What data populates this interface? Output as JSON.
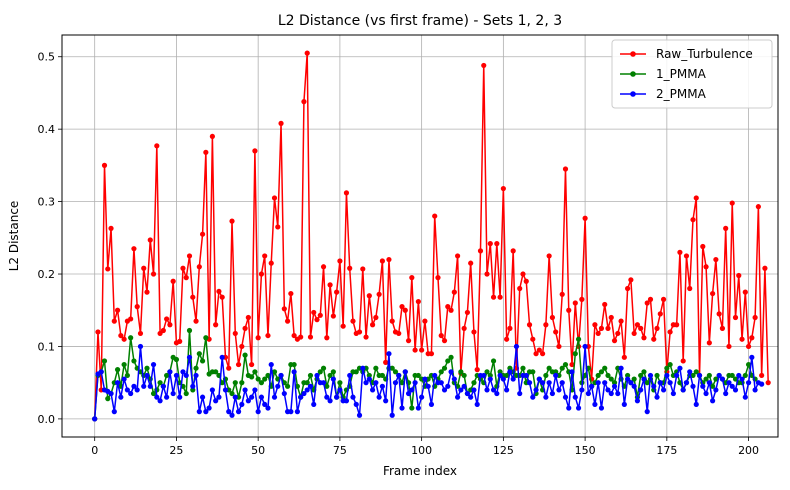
{
  "chart_data": {
    "type": "line",
    "title": "L2 Distance (vs first frame) - Sets 1, 2, 3",
    "xlabel": "Frame index",
    "ylabel": "L2 Distance",
    "xlim": [
      -10,
      209
    ],
    "ylim": [
      -0.025,
      0.53
    ],
    "xticks": [
      0,
      25,
      50,
      75,
      100,
      125,
      150,
      175,
      200
    ],
    "yticks": [
      0.0,
      0.1,
      0.2,
      0.3,
      0.4,
      0.5
    ],
    "grid": true,
    "legend_position": "top-right",
    "series": [
      {
        "name": "Raw_Turbulence",
        "color": "#ff0000",
        "values": [
          0.0,
          0.12,
          0.04,
          0.35,
          0.207,
          0.263,
          0.135,
          0.15,
          0.115,
          0.11,
          0.135,
          0.138,
          0.235,
          0.155,
          0.118,
          0.208,
          0.175,
          0.247,
          0.2,
          0.377,
          0.118,
          0.122,
          0.138,
          0.13,
          0.19,
          0.105,
          0.107,
          0.208,
          0.195,
          0.225,
          0.168,
          0.135,
          0.21,
          0.255,
          0.368,
          0.11,
          0.39,
          0.13,
          0.176,
          0.168,
          0.085,
          0.07,
          0.273,
          0.118,
          0.075,
          0.1,
          0.125,
          0.14,
          0.075,
          0.37,
          0.112,
          0.2,
          0.225,
          0.115,
          0.215,
          0.305,
          0.265,
          0.408,
          0.152,
          0.135,
          0.173,
          0.115,
          0.11,
          0.113,
          0.438,
          0.505,
          0.113,
          0.147,
          0.137,
          0.143,
          0.21,
          0.112,
          0.185,
          0.142,
          0.175,
          0.218,
          0.128,
          0.312,
          0.208,
          0.135,
          0.118,
          0.12,
          0.207,
          0.113,
          0.17,
          0.13,
          0.14,
          0.172,
          0.218,
          0.078,
          0.22,
          0.135,
          0.12,
          0.118,
          0.155,
          0.15,
          0.108,
          0.195,
          0.095,
          0.162,
          0.095,
          0.135,
          0.09,
          0.09,
          0.28,
          0.195,
          0.115,
          0.108,
          0.155,
          0.15,
          0.175,
          0.225,
          0.063,
          0.125,
          0.147,
          0.215,
          0.12,
          0.068,
          0.232,
          0.488,
          0.2,
          0.242,
          0.168,
          0.242,
          0.168,
          0.318,
          0.11,
          0.125,
          0.232,
          0.07,
          0.18,
          0.2,
          0.19,
          0.13,
          0.11,
          0.09,
          0.095,
          0.09,
          0.13,
          0.225,
          0.14,
          0.12,
          0.1,
          0.172,
          0.345,
          0.15,
          0.075,
          0.16,
          0.1,
          0.165,
          0.277,
          0.1,
          0.055,
          0.13,
          0.118,
          0.125,
          0.158,
          0.125,
          0.14,
          0.108,
          0.118,
          0.135,
          0.085,
          0.18,
          0.192,
          0.118,
          0.13,
          0.125,
          0.112,
          0.16,
          0.165,
          0.11,
          0.125,
          0.145,
          0.165,
          0.065,
          0.12,
          0.13,
          0.13,
          0.23,
          0.08,
          0.225,
          0.18,
          0.275,
          0.305,
          0.06,
          0.238,
          0.21,
          0.105,
          0.173,
          0.22,
          0.145,
          0.125,
          0.263,
          0.1,
          0.298,
          0.14,
          0.198,
          0.11,
          0.175,
          0.1,
          0.112,
          0.14,
          0.293,
          0.06,
          0.208,
          0.05
        ]
      },
      {
        "name": "1_PMMA",
        "color": "#008000",
        "values": [
          0.0,
          0.06,
          0.065,
          0.08,
          0.028,
          0.035,
          0.05,
          0.068,
          0.045,
          0.075,
          0.06,
          0.112,
          0.08,
          0.07,
          0.065,
          0.06,
          0.07,
          0.055,
          0.035,
          0.04,
          0.05,
          0.045,
          0.06,
          0.065,
          0.085,
          0.082,
          0.05,
          0.045,
          0.035,
          0.122,
          0.04,
          0.07,
          0.09,
          0.08,
          0.112,
          0.062,
          0.065,
          0.065,
          0.06,
          0.05,
          0.055,
          0.04,
          0.035,
          0.05,
          0.03,
          0.05,
          0.088,
          0.06,
          0.058,
          0.065,
          0.055,
          0.05,
          0.055,
          0.06,
          0.045,
          0.065,
          0.055,
          0.06,
          0.05,
          0.045,
          0.075,
          0.075,
          0.045,
          0.03,
          0.05,
          0.05,
          0.06,
          0.04,
          0.055,
          0.065,
          0.07,
          0.045,
          0.06,
          0.065,
          0.03,
          0.05,
          0.03,
          0.04,
          0.045,
          0.065,
          0.065,
          0.07,
          0.065,
          0.07,
          0.06,
          0.05,
          0.07,
          0.06,
          0.06,
          0.055,
          0.07,
          0.07,
          0.065,
          0.06,
          0.05,
          0.065,
          0.05,
          0.015,
          0.06,
          0.06,
          0.055,
          0.045,
          0.055,
          0.06,
          0.045,
          0.055,
          0.065,
          0.07,
          0.08,
          0.085,
          0.05,
          0.045,
          0.065,
          0.06,
          0.035,
          0.04,
          0.05,
          0.06,
          0.055,
          0.05,
          0.065,
          0.06,
          0.08,
          0.045,
          0.065,
          0.06,
          0.06,
          0.07,
          0.065,
          0.06,
          0.06,
          0.07,
          0.05,
          0.065,
          0.065,
          0.035,
          0.055,
          0.04,
          0.06,
          0.07,
          0.065,
          0.065,
          0.06,
          0.07,
          0.075,
          0.065,
          0.04,
          0.09,
          0.11,
          0.05,
          0.06,
          0.07,
          0.045,
          0.05,
          0.06,
          0.065,
          0.07,
          0.06,
          0.055,
          0.05,
          0.07,
          0.055,
          0.045,
          0.06,
          0.05,
          0.055,
          0.03,
          0.06,
          0.065,
          0.05,
          0.055,
          0.04,
          0.06,
          0.05,
          0.05,
          0.07,
          0.075,
          0.06,
          0.065,
          0.05,
          0.04,
          0.05,
          0.06,
          0.06,
          0.065,
          0.06,
          0.05,
          0.055,
          0.06,
          0.045,
          0.055,
          0.06,
          0.055,
          0.05,
          0.06,
          0.06,
          0.055,
          0.05,
          0.05,
          0.06,
          0.075,
          0.06,
          0.055
        ]
      },
      {
        "name": "2_PMMA",
        "color": "#0000ff",
        "values": [
          0.0,
          0.062,
          0.065,
          0.04,
          0.038,
          0.035,
          0.01,
          0.05,
          0.03,
          0.055,
          0.04,
          0.035,
          0.045,
          0.04,
          0.1,
          0.045,
          0.06,
          0.045,
          0.075,
          0.03,
          0.025,
          0.045,
          0.03,
          0.065,
          0.035,
          0.06,
          0.03,
          0.065,
          0.06,
          0.085,
          0.045,
          0.06,
          0.01,
          0.03,
          0.01,
          0.015,
          0.04,
          0.025,
          0.03,
          0.085,
          0.04,
          0.01,
          0.005,
          0.03,
          0.01,
          0.02,
          0.04,
          0.025,
          0.03,
          0.04,
          0.01,
          0.03,
          0.02,
          0.015,
          0.075,
          0.03,
          0.045,
          0.06,
          0.035,
          0.01,
          0.01,
          0.065,
          0.01,
          0.03,
          0.035,
          0.04,
          0.045,
          0.02,
          0.06,
          0.05,
          0.05,
          0.03,
          0.025,
          0.055,
          0.03,
          0.04,
          0.025,
          0.025,
          0.06,
          0.03,
          0.02,
          0.005,
          0.07,
          0.05,
          0.055,
          0.04,
          0.05,
          0.03,
          0.045,
          0.025,
          0.09,
          0.005,
          0.05,
          0.06,
          0.015,
          0.065,
          0.035,
          0.04,
          0.05,
          0.015,
          0.03,
          0.055,
          0.045,
          0.02,
          0.06,
          0.05,
          0.05,
          0.04,
          0.045,
          0.065,
          0.055,
          0.03,
          0.04,
          0.045,
          0.035,
          0.03,
          0.04,
          0.02,
          0.06,
          0.06,
          0.04,
          0.055,
          0.04,
          0.035,
          0.06,
          0.055,
          0.04,
          0.065,
          0.055,
          0.1,
          0.035,
          0.06,
          0.06,
          0.05,
          0.03,
          0.04,
          0.055,
          0.05,
          0.03,
          0.05,
          0.035,
          0.06,
          0.04,
          0.05,
          0.03,
          0.015,
          0.065,
          0.03,
          0.015,
          0.04,
          0.1,
          0.035,
          0.045,
          0.02,
          0.05,
          0.015,
          0.05,
          0.04,
          0.035,
          0.045,
          0.035,
          0.07,
          0.02,
          0.055,
          0.05,
          0.045,
          0.025,
          0.04,
          0.055,
          0.01,
          0.06,
          0.045,
          0.03,
          0.05,
          0.04,
          0.06,
          0.05,
          0.035,
          0.06,
          0.07,
          0.04,
          0.05,
          0.065,
          0.045,
          0.02,
          0.06,
          0.045,
          0.035,
          0.05,
          0.025,
          0.04,
          0.06,
          0.055,
          0.035,
          0.05,
          0.045,
          0.04,
          0.06,
          0.055,
          0.03,
          0.05,
          0.085,
          0.04,
          0.05,
          0.048
        ]
      }
    ]
  }
}
